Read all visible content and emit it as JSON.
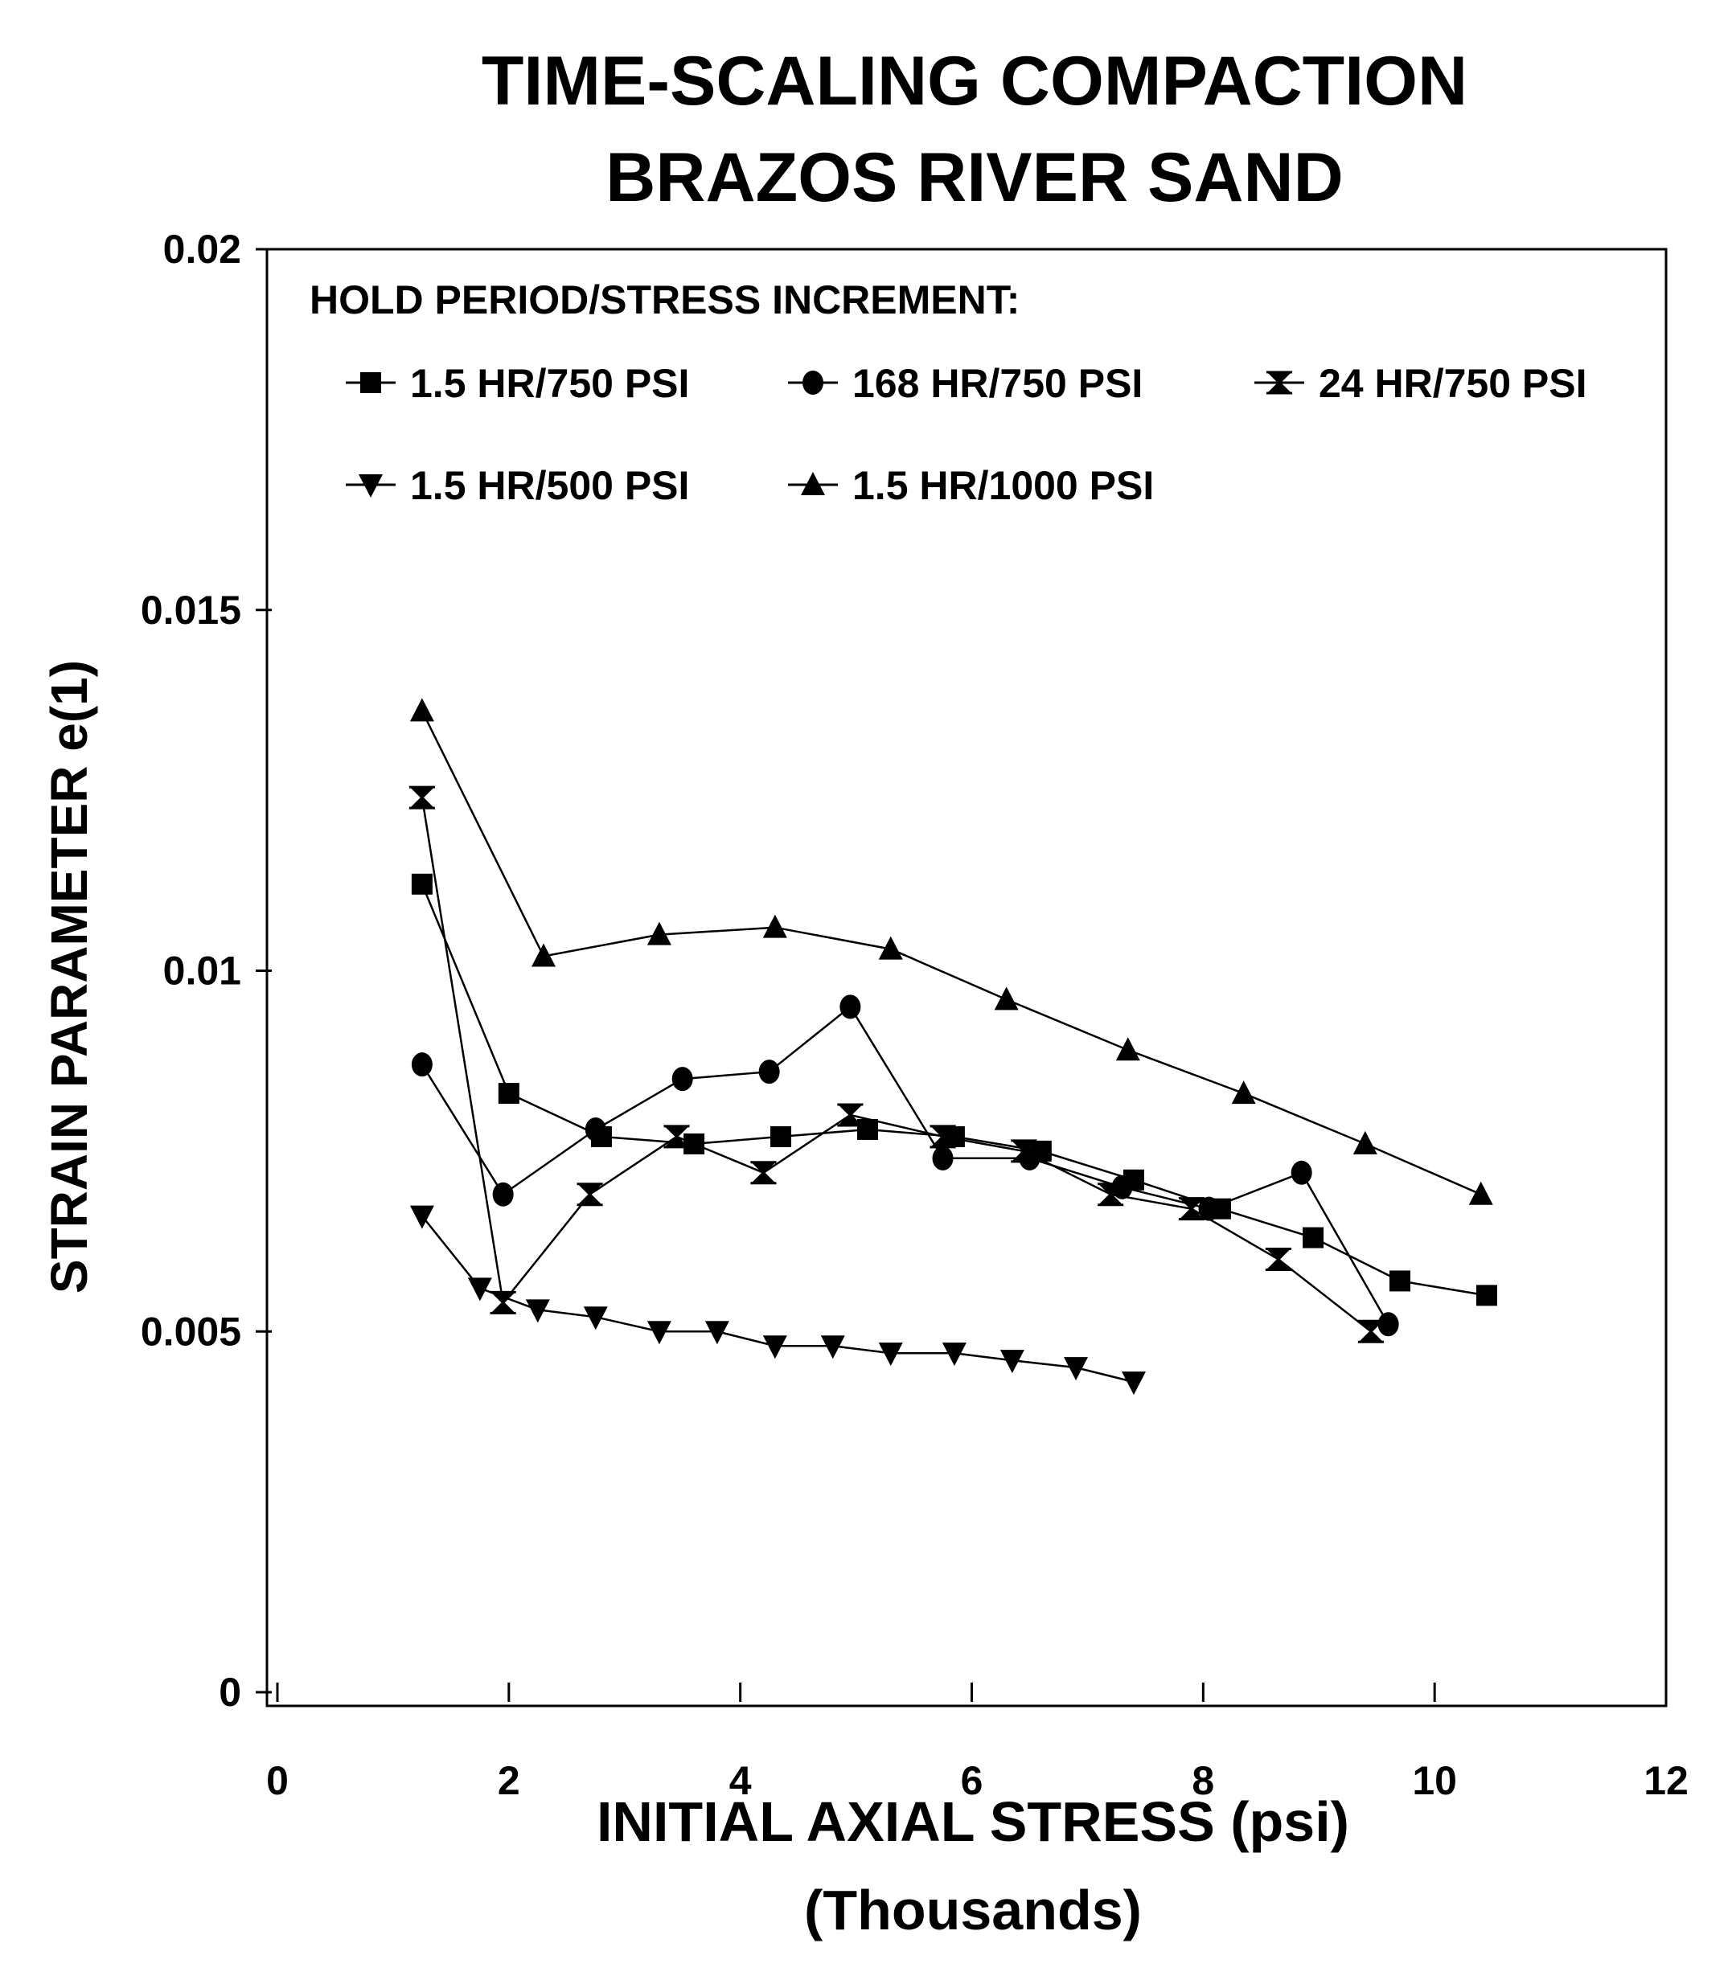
{
  "chart_data": {
    "type": "line",
    "title": "TIME-SCALING COMPACTION",
    "subtitle": "BRAZOS RIVER SAND",
    "xlabel": "INITIAL AXIAL STRESS (psi)",
    "xlabel_units": "(Thousands)",
    "ylabel": "STRAIN PARAMETER e(1)",
    "xlim": [
      0,
      12
    ],
    "ylim": [
      0,
      0.02
    ],
    "x_ticks": [
      "0",
      "2",
      "4",
      "6",
      "8",
      "10",
      "12"
    ],
    "y_ticks": [
      "0",
      "0.005",
      "0.01",
      "0.015",
      "0.02"
    ],
    "grid": false,
    "legend_title": "HOLD PERIOD/STRESS INCREMENT:",
    "legend_position": "top-left inside",
    "series": [
      {
        "name": "1.5 HR/750 PSI",
        "marker": "square",
        "x": [
          1.25,
          2.0,
          2.8,
          3.6,
          4.35,
          5.1,
          5.85,
          6.6,
          7.4,
          8.15,
          8.95,
          9.7,
          10.45
        ],
        "y": [
          0.0112,
          0.0083,
          0.0077,
          0.0076,
          0.0077,
          0.0078,
          0.0077,
          0.0075,
          0.0071,
          0.0067,
          0.0063,
          0.0057,
          0.0055
        ]
      },
      {
        "name": "168 HR/750 PSI",
        "marker": "circle",
        "x": [
          1.25,
          1.95,
          2.75,
          3.5,
          4.25,
          4.95,
          5.75,
          6.5,
          7.3,
          8.05,
          8.85,
          9.6
        ],
        "y": [
          0.0087,
          0.0069,
          0.0078,
          0.0085,
          0.0086,
          0.0095,
          0.0074,
          0.0074,
          0.007,
          0.0067,
          0.0072,
          0.0051
        ]
      },
      {
        "name": "24 HR/750 PSI",
        "marker": "hourglass",
        "x": [
          1.25,
          1.95,
          2.7,
          3.45,
          4.2,
          4.95,
          5.75,
          6.45,
          7.2,
          7.9,
          8.65,
          9.45
        ],
        "y": [
          0.0124,
          0.0054,
          0.0069,
          0.0077,
          0.0072,
          0.008,
          0.0077,
          0.0075,
          0.0069,
          0.0067,
          0.006,
          0.005
        ]
      },
      {
        "name": "1.5 HR/500 PSI",
        "marker": "triangle-down",
        "x": [
          1.25,
          1.75,
          2.25,
          2.75,
          3.3,
          3.8,
          4.3,
          4.8,
          5.3,
          5.85,
          6.35,
          6.9,
          7.4
        ],
        "y": [
          0.0066,
          0.0056,
          0.0053,
          0.0052,
          0.005,
          0.005,
          0.0048,
          0.0048,
          0.0047,
          0.0047,
          0.0046,
          0.0045,
          0.0043
        ]
      },
      {
        "name": "1.5 HR/1000 PSI",
        "marker": "triangle-up",
        "x": [
          1.25,
          2.3,
          3.3,
          4.3,
          5.3,
          6.3,
          7.35,
          8.35,
          9.4,
          10.4
        ],
        "y": [
          0.0136,
          0.0102,
          0.0105,
          0.0106,
          0.0103,
          0.0096,
          0.0089,
          0.0083,
          0.0076,
          0.0069
        ]
      }
    ]
  }
}
